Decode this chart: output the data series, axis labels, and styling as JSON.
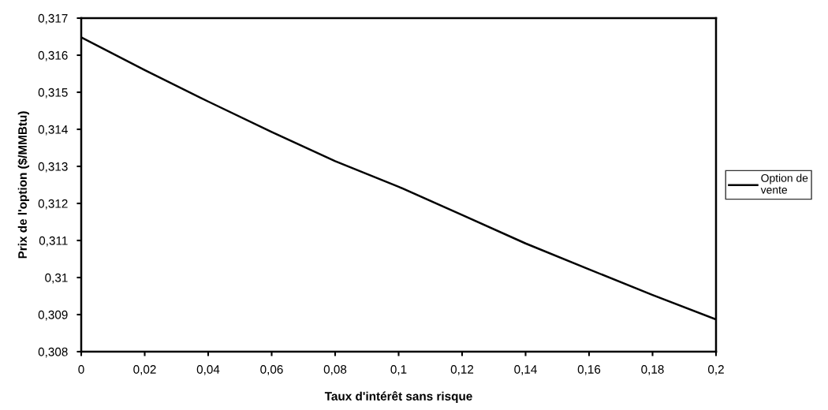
{
  "chart_data": {
    "type": "line",
    "xlabel": "Taux d'intérêt sans risque",
    "ylabel": "Prix de l'option ($/MMBtu)",
    "x": [
      0,
      0.02,
      0.04,
      0.06,
      0.08,
      0.1,
      0.12,
      0.14,
      0.16,
      0.18,
      0.2
    ],
    "series": [
      {
        "name": "Option de\nvente",
        "color": "#000000",
        "values": [
          0.31648,
          0.3156,
          0.31475,
          0.31393,
          0.31314,
          0.31245,
          0.31169,
          0.31092,
          0.31022,
          0.30953,
          0.30887
        ]
      }
    ],
    "xlim": [
      0,
      0.2
    ],
    "xticks": [
      0,
      {
        "value": 0.02,
        "label": "0,02"
      },
      {
        "value": 0.04,
        "label": "0,04"
      },
      {
        "value": 0.06,
        "label": "0,06"
      },
      {
        "value": 0.08,
        "label": "0,08"
      },
      {
        "value": 0.1,
        "label": "0,1"
      },
      {
        "value": 0.12,
        "label": "0,12"
      },
      {
        "value": 0.14,
        "label": "0,14"
      },
      {
        "value": 0.16,
        "label": "0,16"
      },
      {
        "value": 0.18,
        "label": "0,18"
      },
      {
        "value": 0.2,
        "label": "0,2"
      }
    ],
    "ylim": [
      0.308,
      0.317
    ],
    "yticks": [
      {
        "value": 0.308,
        "label": "0,308"
      },
      {
        "value": 0.309,
        "label": "0,309"
      },
      {
        "value": 0.31,
        "label": "0,31"
      },
      {
        "value": 0.311,
        "label": "0,311"
      },
      {
        "value": 0.312,
        "label": "0,312"
      },
      {
        "value": 0.313,
        "label": "0,313"
      },
      {
        "value": 0.314,
        "label": "0,314"
      },
      {
        "value": 0.315,
        "label": "0,315"
      },
      {
        "value": 0.316,
        "label": "0,316"
      },
      {
        "value": 0.317,
        "label": "0,317"
      }
    ],
    "grid": false,
    "legend": "right",
    "marker": "none",
    "line_style": "solid"
  }
}
